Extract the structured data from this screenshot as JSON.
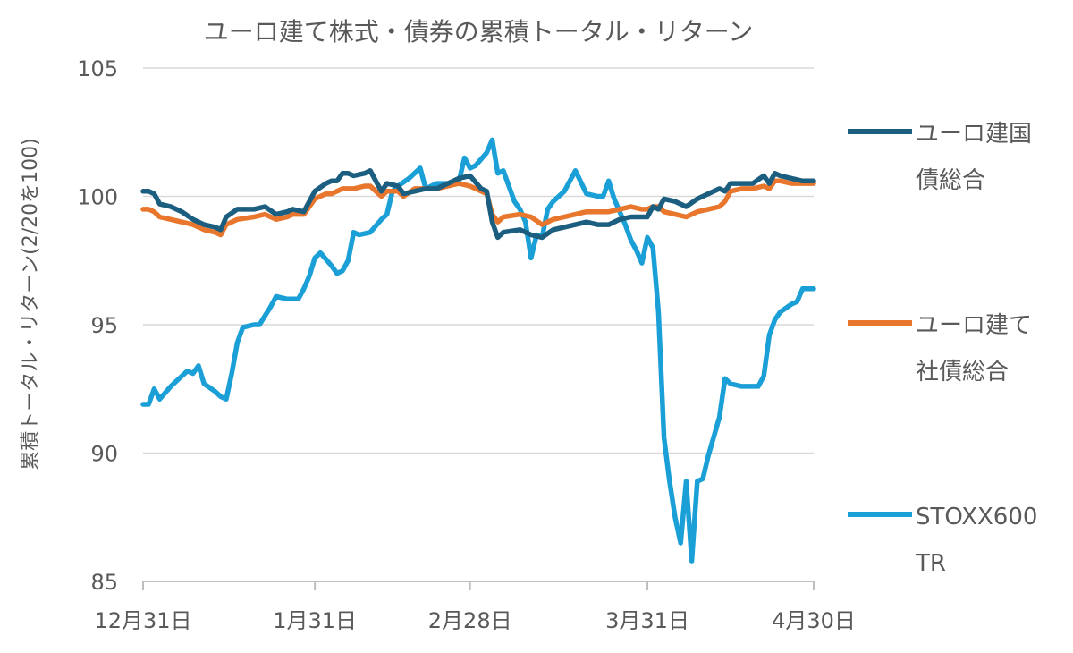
{
  "chart_data": {
    "type": "line",
    "title": "ユーロ建て株式・債券の累積トータル・リターン",
    "xlabel": "",
    "ylabel": "累積トータル・リターン(2/20を100)",
    "ylim": [
      85,
      105
    ],
    "yticks": [
      "85",
      "90",
      "95",
      "100",
      "105"
    ],
    "xticks": [
      {
        "label": "12月31日",
        "day": 0
      },
      {
        "label": "1月31日",
        "day": 31
      },
      {
        "label": "2月28日",
        "day": 59
      },
      {
        "label": "3月31日",
        "day": 91
      },
      {
        "label": "4月30日",
        "day": 121
      }
    ],
    "x_domain": [
      0,
      121
    ],
    "grid": true,
    "legend_position": "right",
    "series": [
      {
        "name": "ユーロ建国債総合",
        "color": "#1b5e80",
        "points": [
          [
            0,
            100.2
          ],
          [
            1,
            100.2
          ],
          [
            2,
            100.1
          ],
          [
            3,
            99.7
          ],
          [
            5,
            99.6
          ],
          [
            7,
            99.4
          ],
          [
            9,
            99.1
          ],
          [
            11,
            98.9
          ],
          [
            13,
            98.8
          ],
          [
            14,
            98.7
          ],
          [
            15,
            99.2
          ],
          [
            17,
            99.5
          ],
          [
            20,
            99.5
          ],
          [
            22,
            99.6
          ],
          [
            24,
            99.3
          ],
          [
            26,
            99.4
          ],
          [
            27,
            99.5
          ],
          [
            29,
            99.4
          ],
          [
            31,
            100.2
          ],
          [
            33,
            100.5
          ],
          [
            34,
            100.6
          ],
          [
            35,
            100.6
          ],
          [
            36,
            100.9
          ],
          [
            37,
            100.9
          ],
          [
            38,
            100.8
          ],
          [
            40,
            100.9
          ],
          [
            41,
            101.0
          ],
          [
            43,
            100.2
          ],
          [
            44,
            100.5
          ],
          [
            46,
            100.4
          ],
          [
            47,
            100.1
          ],
          [
            49,
            100.2
          ],
          [
            51,
            100.3
          ],
          [
            53,
            100.3
          ],
          [
            55,
            100.5
          ],
          [
            57,
            100.7
          ],
          [
            59,
            100.8
          ],
          [
            61,
            100.3
          ],
          [
            62,
            100.2
          ],
          [
            63,
            99.0
          ],
          [
            64,
            98.4
          ],
          [
            65,
            98.6
          ],
          [
            68,
            98.7
          ],
          [
            70,
            98.5
          ],
          [
            72,
            98.4
          ],
          [
            74,
            98.7
          ],
          [
            76,
            98.8
          ],
          [
            78,
            98.9
          ],
          [
            80,
            99.0
          ],
          [
            82,
            98.9
          ],
          [
            84,
            98.9
          ],
          [
            86,
            99.1
          ],
          [
            88,
            99.2
          ],
          [
            90,
            99.2
          ],
          [
            91,
            99.2
          ],
          [
            92,
            99.6
          ],
          [
            93,
            99.5
          ],
          [
            94,
            99.9
          ],
          [
            96,
            99.8
          ],
          [
            98,
            99.6
          ],
          [
            100,
            99.9
          ],
          [
            102,
            100.1
          ],
          [
            104,
            100.3
          ],
          [
            105,
            100.2
          ],
          [
            106,
            100.5
          ],
          [
            108,
            100.5
          ],
          [
            110,
            100.5
          ],
          [
            112,
            100.8
          ],
          [
            113,
            100.5
          ],
          [
            114,
            100.9
          ],
          [
            115,
            100.8
          ],
          [
            117,
            100.7
          ],
          [
            119,
            100.6
          ],
          [
            121,
            100.6
          ]
        ]
      },
      {
        "name": "ユーロ建て社債総合",
        "color": "#e8762d",
        "points": [
          [
            0,
            99.5
          ],
          [
            1,
            99.5
          ],
          [
            2,
            99.4
          ],
          [
            3,
            99.2
          ],
          [
            5,
            99.1
          ],
          [
            7,
            99.0
          ],
          [
            9,
            98.9
          ],
          [
            11,
            98.7
          ],
          [
            13,
            98.6
          ],
          [
            14,
            98.5
          ],
          [
            15,
            98.9
          ],
          [
            17,
            99.1
          ],
          [
            20,
            99.2
          ],
          [
            22,
            99.3
          ],
          [
            24,
            99.1
          ],
          [
            26,
            99.2
          ],
          [
            27,
            99.3
          ],
          [
            29,
            99.3
          ],
          [
            31,
            99.9
          ],
          [
            33,
            100.1
          ],
          [
            34,
            100.1
          ],
          [
            35,
            100.2
          ],
          [
            36,
            100.3
          ],
          [
            37,
            100.3
          ],
          [
            38,
            100.3
          ],
          [
            40,
            100.4
          ],
          [
            41,
            100.4
          ],
          [
            43,
            100.0
          ],
          [
            44,
            100.2
          ],
          [
            46,
            100.2
          ],
          [
            47,
            100.0
          ],
          [
            49,
            100.3
          ],
          [
            51,
            100.3
          ],
          [
            53,
            100.3
          ],
          [
            55,
            100.4
          ],
          [
            57,
            100.5
          ],
          [
            59,
            100.4
          ],
          [
            61,
            100.2
          ],
          [
            62,
            100.1
          ],
          [
            63,
            99.3
          ],
          [
            64,
            99.0
          ],
          [
            65,
            99.2
          ],
          [
            68,
            99.3
          ],
          [
            70,
            99.2
          ],
          [
            72,
            98.9
          ],
          [
            74,
            99.1
          ],
          [
            76,
            99.2
          ],
          [
            78,
            99.3
          ],
          [
            80,
            99.4
          ],
          [
            82,
            99.4
          ],
          [
            84,
            99.4
          ],
          [
            86,
            99.5
          ],
          [
            88,
            99.6
          ],
          [
            90,
            99.5
          ],
          [
            91,
            99.5
          ],
          [
            92,
            99.6
          ],
          [
            93,
            99.6
          ],
          [
            94,
            99.4
          ],
          [
            96,
            99.3
          ],
          [
            98,
            99.2
          ],
          [
            99,
            99.3
          ],
          [
            100,
            99.4
          ],
          [
            102,
            99.5
          ],
          [
            104,
            99.6
          ],
          [
            105,
            99.8
          ],
          [
            106,
            100.2
          ],
          [
            108,
            100.3
          ],
          [
            110,
            100.3
          ],
          [
            112,
            100.4
          ],
          [
            113,
            100.3
          ],
          [
            114,
            100.6
          ],
          [
            115,
            100.6
          ],
          [
            117,
            100.5
          ],
          [
            119,
            100.5
          ],
          [
            121,
            100.5
          ]
        ]
      },
      {
        "name": "STOXX600 TR",
        "color": "#1a9fd6",
        "points": [
          [
            0,
            91.9
          ],
          [
            1,
            91.9
          ],
          [
            2,
            92.5
          ],
          [
            3,
            92.1
          ],
          [
            5,
            92.6
          ],
          [
            7,
            93.0
          ],
          [
            8,
            93.2
          ],
          [
            9,
            93.1
          ],
          [
            10,
            93.4
          ],
          [
            11,
            92.7
          ],
          [
            13,
            92.4
          ],
          [
            14,
            92.2
          ],
          [
            15,
            92.1
          ],
          [
            16,
            93.1
          ],
          [
            17,
            94.3
          ],
          [
            18,
            94.9
          ],
          [
            20,
            95.0
          ],
          [
            21,
            95.0
          ],
          [
            23,
            95.7
          ],
          [
            24,
            96.1
          ],
          [
            26,
            96.0
          ],
          [
            28,
            96.0
          ],
          [
            29,
            96.4
          ],
          [
            30,
            96.9
          ],
          [
            31,
            97.6
          ],
          [
            32,
            97.8
          ],
          [
            34,
            97.3
          ],
          [
            35,
            97.0
          ],
          [
            36,
            97.1
          ],
          [
            37,
            97.5
          ],
          [
            38,
            98.6
          ],
          [
            39,
            98.5
          ],
          [
            41,
            98.6
          ],
          [
            43,
            99.1
          ],
          [
            44,
            99.3
          ],
          [
            45,
            100.2
          ],
          [
            46,
            100.4
          ],
          [
            48,
            100.7
          ],
          [
            50,
            101.1
          ],
          [
            51,
            100.3
          ],
          [
            53,
            100.5
          ],
          [
            55,
            100.5
          ],
          [
            57,
            100.6
          ],
          [
            58,
            101.5
          ],
          [
            59,
            101.1
          ],
          [
            60,
            101.2
          ],
          [
            62,
            101.7
          ],
          [
            63,
            102.2
          ],
          [
            64,
            100.9
          ],
          [
            65,
            101.0
          ],
          [
            66,
            100.4
          ],
          [
            67,
            99.8
          ],
          [
            68,
            99.5
          ],
          [
            69,
            99.0
          ],
          [
            70,
            97.6
          ],
          [
            71,
            98.5
          ],
          [
            72,
            98.4
          ],
          [
            73,
            99.5
          ],
          [
            74,
            99.8
          ],
          [
            76,
            100.2
          ],
          [
            77,
            100.6
          ],
          [
            78,
            101.0
          ],
          [
            80,
            100.1
          ],
          [
            82,
            100.0
          ],
          [
            83,
            100.0
          ],
          [
            84,
            100.6
          ],
          [
            85,
            99.9
          ],
          [
            86,
            99.4
          ],
          [
            87,
            98.9
          ],
          [
            88,
            98.3
          ],
          [
            89,
            97.9
          ],
          [
            90,
            97.4
          ],
          [
            91,
            98.4
          ],
          [
            92,
            98.0
          ],
          [
            93,
            95.5
          ],
          [
            94,
            90.6
          ],
          [
            95,
            88.9
          ],
          [
            96,
            87.5
          ],
          [
            97,
            86.5
          ],
          [
            98,
            88.9
          ],
          [
            99,
            85.8
          ],
          [
            100,
            88.9
          ],
          [
            101,
            89.0
          ],
          [
            102,
            89.9
          ],
          [
            104,
            91.4
          ],
          [
            105,
            92.9
          ],
          [
            106,
            92.7
          ],
          [
            108,
            92.6
          ],
          [
            110,
            92.6
          ],
          [
            111,
            92.6
          ],
          [
            112,
            93.0
          ],
          [
            113,
            94.6
          ],
          [
            114,
            95.2
          ],
          [
            115,
            95.5
          ],
          [
            117,
            95.8
          ],
          [
            118,
            95.9
          ],
          [
            119,
            96.4
          ],
          [
            121,
            96.4
          ]
        ]
      }
    ],
    "legend": [
      {
        "lines": [
          "ユーロ建国",
          "債総合"
        ]
      },
      {
        "lines": [
          "ユーロ建て",
          "社債総合"
        ]
      },
      {
        "lines": [
          "STOXX600",
          "TR"
        ]
      }
    ]
  }
}
